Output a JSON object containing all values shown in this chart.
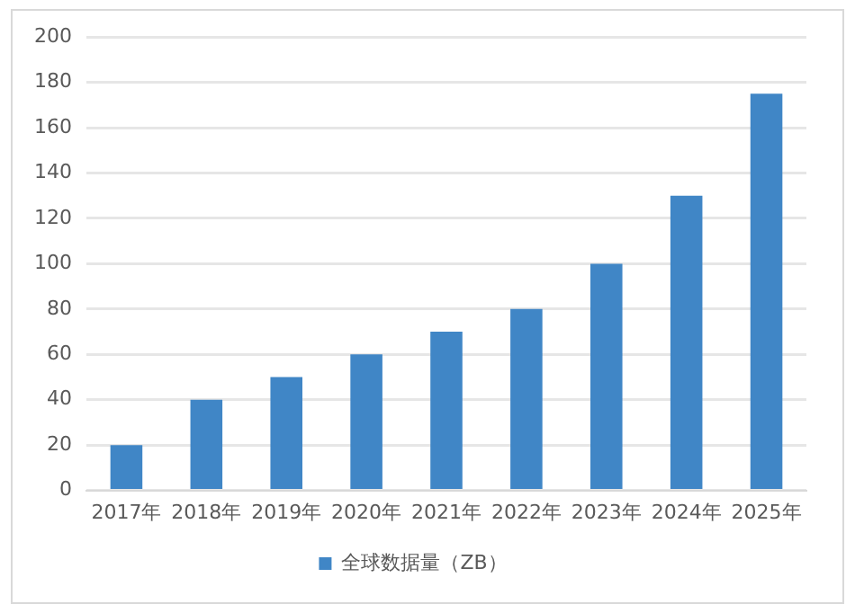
{
  "chart_data": {
    "type": "bar",
    "categories": [
      "2017年",
      "2018年",
      "2019年",
      "2020年",
      "2021年",
      "2022年",
      "2023年",
      "2024年",
      "2025年"
    ],
    "series": [
      {
        "name": "全球数据量（ZB）",
        "color": "#4086c6",
        "values": [
          20,
          40,
          50,
          60,
          70,
          80,
          100,
          130,
          175
        ]
      }
    ],
    "ylim": [
      0,
      200
    ],
    "yticks": [
      0,
      20,
      40,
      60,
      80,
      100,
      120,
      140,
      160,
      180,
      200
    ],
    "grid": "y",
    "legend": "bottom"
  }
}
